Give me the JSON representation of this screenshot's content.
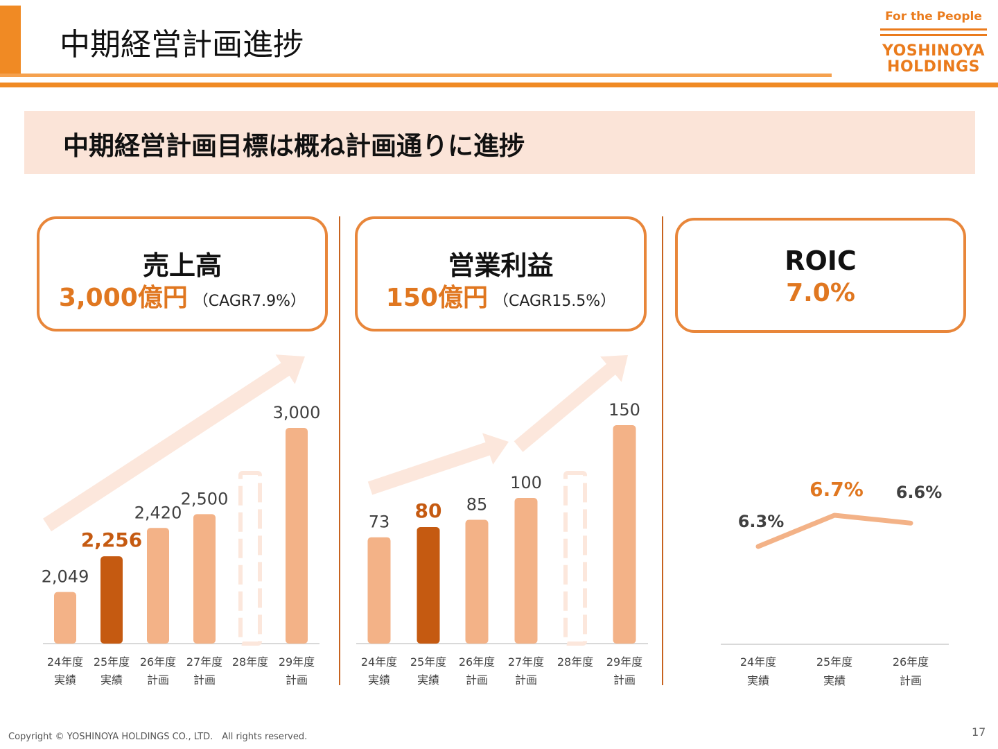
{
  "header": {
    "title": "中期経営計画進捗",
    "logo_tagline": "For the People",
    "logo_name_line1": "YOSHINOYA",
    "logo_name_line2": "HOLDINGS"
  },
  "banner": {
    "text": "中期経営計画目標は概ね計画通りに進捗"
  },
  "kpis": [
    {
      "title": "売上高",
      "value": "3,000億円",
      "note": "（CAGR7.9%）"
    },
    {
      "title": "営業利益",
      "value": "150億円",
      "note": "（CAGR15.5%）"
    },
    {
      "title": "ROIC",
      "value": "7.0%",
      "note": ""
    }
  ],
  "colors": {
    "accent": "#f08a24",
    "bar": "#f3b287",
    "bar_highlight": "#c55a11",
    "label_highlight": "#c55a11",
    "arrow": "#fce7dc",
    "kpi_value": "#e07720"
  },
  "chart_data": [
    {
      "type": "bar",
      "categories": [
        [
          "24年度",
          "実績"
        ],
        [
          "25年度",
          "実績"
        ],
        [
          "26年度",
          "計画"
        ],
        [
          "27年度",
          "計画"
        ],
        [
          "28年度",
          ""
        ],
        [
          "29年度",
          "計画"
        ]
      ],
      "values": [
        2049,
        2256,
        2420,
        2500,
        null,
        3000
      ],
      "labels": [
        "2,049",
        "2,256",
        "2,420",
        "2,500",
        "",
        "3,000"
      ],
      "highlight_index": 1,
      "placeholder_index": 4,
      "ylim": [
        1750,
        3000
      ]
    },
    {
      "type": "bar",
      "categories": [
        [
          "24年度",
          "実績"
        ],
        [
          "25年度",
          "実績"
        ],
        [
          "26年度",
          "計画"
        ],
        [
          "27年度",
          "計画"
        ],
        [
          "28年度",
          ""
        ],
        [
          "29年度",
          "計画"
        ]
      ],
      "values": [
        73,
        80,
        85,
        100,
        null,
        150
      ],
      "labels": [
        "73",
        "80",
        "85",
        "100",
        "",
        "150"
      ],
      "highlight_index": 1,
      "placeholder_index": 4,
      "ylim": [
        0,
        150
      ]
    },
    {
      "type": "line",
      "categories": [
        [
          "24年度",
          "実績"
        ],
        [
          "25年度",
          "実績"
        ],
        [
          "26年度",
          "計画"
        ]
      ],
      "values": [
        6.3,
        6.7,
        6.6
      ],
      "labels": [
        "6.3%",
        "6.7%",
        "6.6%"
      ],
      "highlight_index": 1,
      "ylim": [
        5.9,
        6.7
      ]
    }
  ],
  "footer": {
    "copyright": "Copyright © YOSHINOYA HOLDINGS CO., LTD.　All rights reserved.",
    "page": "17"
  }
}
